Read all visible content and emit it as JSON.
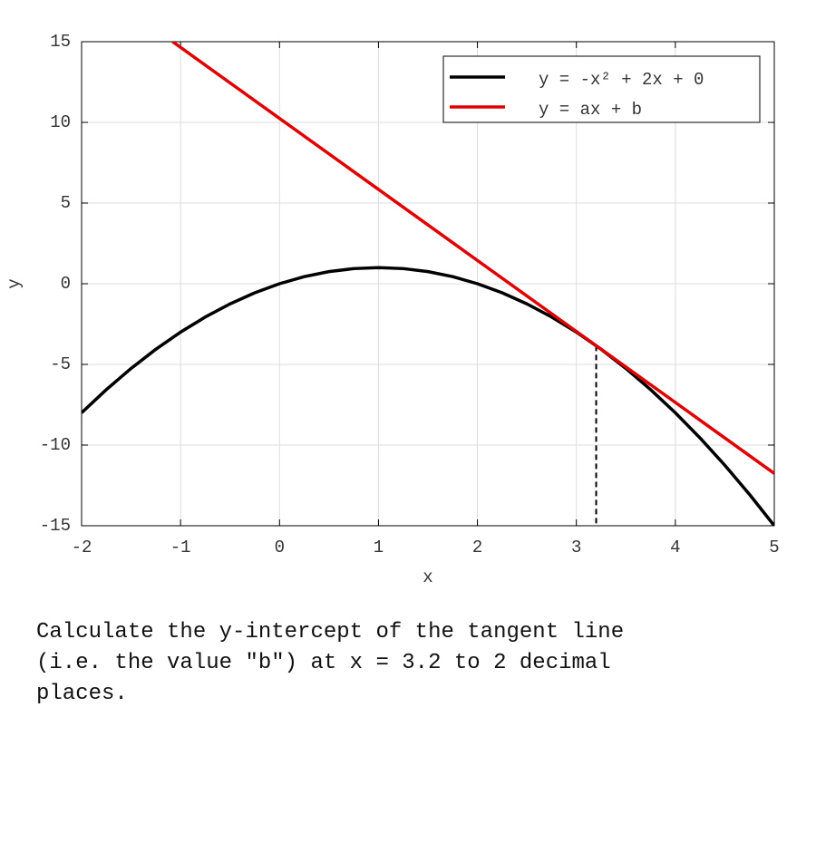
{
  "chart_data": {
    "type": "line",
    "xlabel": "x",
    "ylabel": "y",
    "xlim": [
      -2,
      5
    ],
    "ylim": [
      -15,
      15
    ],
    "xticks": [
      -2,
      -1,
      0,
      1,
      2,
      3,
      4,
      5
    ],
    "yticks": [
      -15,
      -10,
      -5,
      0,
      5,
      10,
      15
    ],
    "grid": true,
    "legend": "upper right",
    "series": [
      {
        "name": "y = -x² + 2x + 0",
        "color": "#000000",
        "x": [
          -2,
          -1.75,
          -1.5,
          -1.25,
          -1,
          -0.75,
          -0.5,
          -0.25,
          0,
          0.25,
          0.5,
          0.75,
          1,
          1.25,
          1.5,
          1.75,
          2,
          2.25,
          2.5,
          2.75,
          3,
          3.25,
          3.5,
          3.75,
          4,
          4.25,
          4.5,
          4.75,
          5
        ],
        "values": [
          -8,
          -6.5625,
          -5.25,
          -4.0625,
          -3,
          -2.0625,
          -1.25,
          -0.5625,
          0,
          0.4375,
          0.75,
          0.9375,
          1,
          0.9375,
          0.75,
          0.4375,
          0,
          -0.5625,
          -1.25,
          -2.0625,
          -3,
          -4.0625,
          -5.25,
          -6.5625,
          -8,
          -9.5625,
          -11.25,
          -13.0625,
          -15
        ]
      },
      {
        "name": "y = ax + b",
        "color": "#e00000",
        "x": [
          -1.08,
          5
        ],
        "values": [
          15,
          -11.76
        ]
      }
    ],
    "tangent_point": {
      "x": 3.2,
      "y": -3.84
    }
  },
  "question": "Calculate the y-intercept of the tangent line (i.e. the value \"b\") at x = 3.2 to 2 decimal places."
}
